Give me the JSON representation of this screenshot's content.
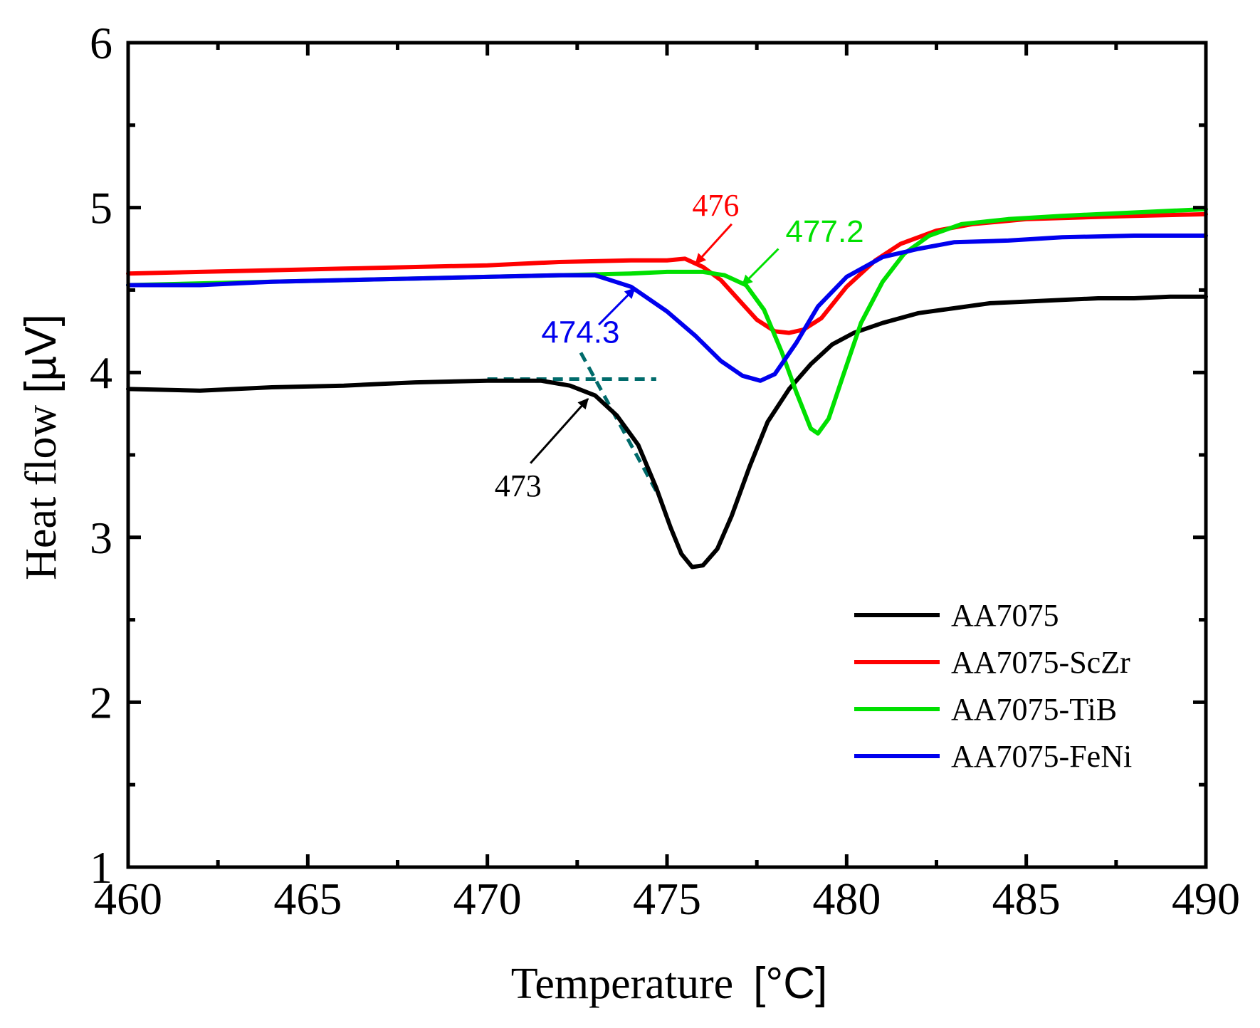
{
  "chart_data": {
    "type": "line",
    "title": "",
    "xlabel": "Temperature",
    "xlabel_unit": "[°C]",
    "ylabel": "Heat flow",
    "ylabel_unit": "[µV]",
    "xlim": [
      460,
      490
    ],
    "ylim": [
      1,
      6
    ],
    "xticks": [
      460,
      465,
      470,
      475,
      480,
      485,
      490
    ],
    "yticks": [
      1,
      2,
      3,
      4,
      5,
      6
    ],
    "grid": false,
    "legend_position": "bottom-right",
    "series": [
      {
        "name": "AA7075",
        "color": "#000000",
        "x": [
          460,
          462,
          464,
          466,
          468,
          470,
          471.5,
          472.3,
          473,
          473.6,
          474.2,
          474.7,
          475.1,
          475.4,
          475.7,
          476,
          476.4,
          476.8,
          477.3,
          477.8,
          478.4,
          479,
          479.6,
          480.2,
          481,
          482,
          483,
          484,
          485,
          486,
          487,
          488,
          489,
          490
        ],
        "values": [
          3.9,
          3.89,
          3.91,
          3.92,
          3.94,
          3.95,
          3.95,
          3.92,
          3.86,
          3.74,
          3.56,
          3.3,
          3.06,
          2.9,
          2.82,
          2.83,
          2.93,
          3.13,
          3.43,
          3.7,
          3.9,
          4.05,
          4.17,
          4.24,
          4.3,
          4.36,
          4.39,
          4.42,
          4.43,
          4.44,
          4.45,
          4.45,
          4.46,
          4.46
        ]
      },
      {
        "name": "AA7075-ScZr",
        "color": "#ff0000",
        "x": [
          460,
          462,
          464,
          466,
          468,
          470,
          472,
          474,
          475,
          475.5,
          476,
          476.5,
          477,
          477.5,
          478,
          478.4,
          478.8,
          479.3,
          480,
          480.8,
          481.5,
          482.5,
          483.5,
          485,
          486.5,
          488,
          490
        ],
        "values": [
          4.6,
          4.61,
          4.62,
          4.63,
          4.64,
          4.65,
          4.67,
          4.68,
          4.68,
          4.69,
          4.64,
          4.56,
          4.44,
          4.32,
          4.25,
          4.24,
          4.26,
          4.33,
          4.52,
          4.68,
          4.78,
          4.86,
          4.9,
          4.93,
          4.94,
          4.95,
          4.96
        ]
      },
      {
        "name": "AA7075-TiB",
        "color": "#00e000",
        "x": [
          460,
          462,
          464,
          466,
          468,
          470,
          472,
          474,
          475,
          476,
          476.6,
          477.2,
          477.7,
          478.2,
          478.6,
          479,
          479.2,
          479.5,
          479.9,
          480.4,
          481,
          481.6,
          482.3,
          483.2,
          484.5,
          486,
          488,
          490
        ],
        "values": [
          4.53,
          4.54,
          4.55,
          4.56,
          4.57,
          4.58,
          4.59,
          4.6,
          4.61,
          4.61,
          4.59,
          4.53,
          4.38,
          4.12,
          3.88,
          3.66,
          3.63,
          3.72,
          3.98,
          4.3,
          4.55,
          4.72,
          4.83,
          4.9,
          4.93,
          4.95,
          4.97,
          4.99
        ]
      },
      {
        "name": "AA7075-FeNi",
        "color": "#0000ee",
        "x": [
          460,
          462,
          464,
          466,
          468,
          470,
          472,
          473,
          474,
          475,
          475.8,
          476.5,
          477.1,
          477.6,
          478,
          478.6,
          479.2,
          480,
          481,
          482,
          483,
          484.5,
          486,
          488,
          490
        ],
        "values": [
          4.53,
          4.53,
          4.55,
          4.56,
          4.57,
          4.58,
          4.59,
          4.59,
          4.52,
          4.37,
          4.22,
          4.07,
          3.98,
          3.95,
          3.99,
          4.18,
          4.4,
          4.58,
          4.7,
          4.75,
          4.79,
          4.8,
          4.82,
          4.83,
          4.83
        ]
      }
    ],
    "annotations": [
      {
        "label": "473",
        "color": "#000000",
        "tip": [
          472.8,
          3.84
        ],
        "tail": [
          471.2,
          3.45
        ],
        "text_at": [
          470.2,
          3.25
        ],
        "font": "serif"
      },
      {
        "label": "476",
        "color": "#ff0000",
        "tip": [
          475.8,
          4.66
        ],
        "tail": [
          476.8,
          4.9
        ],
        "text_at": [
          475.7,
          4.95
        ],
        "font": "serif"
      },
      {
        "label": "477.2",
        "color": "#00e000",
        "tip": [
          477.1,
          4.53
        ],
        "tail": [
          478.1,
          4.75
        ],
        "text_at": [
          478.3,
          4.79
        ],
        "font": "sans"
      },
      {
        "label": "474.3",
        "color": "#0000ee",
        "tip": [
          474.1,
          4.51
        ],
        "tail": [
          473.1,
          4.29
        ],
        "text_at": [
          471.5,
          4.18
        ],
        "font": "sans"
      }
    ],
    "tangent_lines": {
      "color": "#006b6b",
      "horizontal": {
        "x": [
          470.0,
          474.7
        ],
        "y": 3.96
      },
      "slope": {
        "x": [
          472.6,
          474.7
        ],
        "y": [
          4.12,
          3.28
        ]
      }
    }
  }
}
